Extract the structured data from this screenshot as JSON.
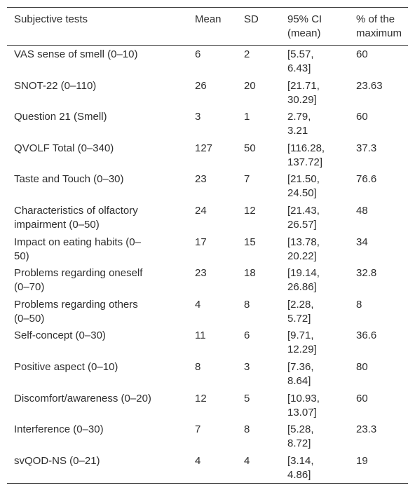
{
  "table": {
    "header": [
      "Subjective tests",
      "Mean",
      "SD",
      "95% CI (mean)",
      "% of the maximum"
    ],
    "rows": [
      [
        "VAS sense of smell (0–10)",
        6,
        2,
        "[5.57, 6.43]",
        60
      ],
      [
        "SNOT-22 (0–110)",
        26,
        20,
        "[21.71, 30.29]",
        23.63
      ],
      [
        "Question 21 (Smell)",
        3,
        1,
        "2.79, 3.21",
        60
      ],
      [
        "QVOLF Total (0–340)",
        127,
        50,
        "[116.28, 137.72]",
        37.3
      ],
      [
        "Taste and Touch (0–30)",
        23,
        7,
        "[21.50, 24.50]",
        76.6
      ],
      [
        "Characteristics of olfactory impairment (0–50)",
        24,
        12,
        "[21.43, 26.57]",
        48
      ],
      [
        "Impact on eating habits (0–50)",
        17,
        15,
        "[13.78, 20.22]",
        34
      ],
      [
        "Problems regarding oneself (0–70)",
        23,
        18,
        "[19.14, 26.86]",
        32.8
      ],
      [
        "Problems regarding others (0–50)",
        4,
        8,
        "[2.28, 5.72]",
        8
      ],
      [
        "Self-concept (0–30)",
        11,
        6,
        "[9.71, 12.29]",
        36.6
      ],
      [
        "Positive aspect (0–10)",
        8,
        3,
        "[7.36, 8.64]",
        80
      ],
      [
        "Discomfort/awareness (0–20)",
        12,
        5,
        "[10.93, 13.07]",
        60
      ],
      [
        "Interference (0–30)",
        7,
        8,
        "[5.28, 8.72]",
        23.3
      ],
      [
        "svQOD-NS (0–21)",
        4,
        4,
        "[3.14, 4.86]",
        19
      ]
    ]
  }
}
